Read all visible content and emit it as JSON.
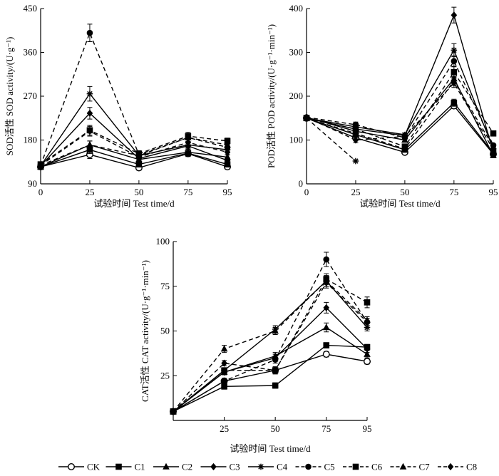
{
  "chart_data": [
    {
      "id": "sod",
      "type": "line",
      "ylabel": "SOD活性 SOD activity/(U·g⁻¹)",
      "xlabel": "试验时间 Test time/d",
      "xlim": [
        0,
        95
      ],
      "ylim": [
        90,
        450
      ],
      "xticks": [
        0,
        25,
        50,
        75,
        95
      ],
      "yticks": [
        90,
        180,
        270,
        360,
        450
      ],
      "x": [
        0,
        25,
        50,
        75,
        95
      ],
      "series": [
        {
          "name": "CK",
          "values": [
            125,
            150,
            123,
            152,
            125
          ],
          "err": [
            0,
            8,
            5,
            6,
            5
          ]
        },
        {
          "name": "C1",
          "values": [
            125,
            160,
            130,
            153,
            130
          ],
          "err": [
            0,
            8,
            5,
            6,
            5
          ]
        },
        {
          "name": "C2",
          "values": [
            125,
            170,
            140,
            155,
            145
          ],
          "err": [
            0,
            8,
            5,
            6,
            5
          ]
        },
        {
          "name": "C3",
          "values": [
            127,
            235,
            142,
            168,
            138
          ],
          "err": [
            0,
            12,
            6,
            6,
            6
          ]
        },
        {
          "name": "C4",
          "values": [
            127,
            275,
            148,
            170,
            160
          ],
          "err": [
            0,
            15,
            6,
            6,
            6
          ]
        },
        {
          "name": "C5",
          "values": [
            128,
            400,
            150,
            185,
            165
          ],
          "err": [
            0,
            18,
            6,
            8,
            6
          ]
        },
        {
          "name": "C6",
          "values": [
            130,
            200,
            152,
            188,
            178
          ],
          "err": [
            0,
            10,
            6,
            8,
            6
          ]
        },
        {
          "name": "C7",
          "values": [
            128,
            170,
            148,
            185,
            170
          ],
          "err": [
            0,
            8,
            6,
            8,
            6
          ]
        },
        {
          "name": "C8",
          "values": [
            128,
            198,
            145,
            175,
            155
          ],
          "err": [
            0,
            10,
            6,
            6,
            6
          ]
        }
      ]
    },
    {
      "id": "pod",
      "type": "line",
      "ylabel": "POD活性 POD activity/(U·g⁻¹·min⁻¹)",
      "xlabel": "试验时间 Test time/d",
      "xlim": [
        0,
        95
      ],
      "ylim": [
        0,
        400
      ],
      "xticks": [
        0,
        25,
        50,
        75,
        95
      ],
      "yticks": [
        0,
        100,
        200,
        300,
        400
      ],
      "x": [
        0,
        25,
        50,
        75,
        95
      ],
      "series": [
        {
          "name": "CK",
          "values": [
            150,
            105,
            72,
            178,
            68
          ],
          "err": [
            5,
            6,
            4,
            6,
            4
          ]
        },
        {
          "name": "C1",
          "values": [
            150,
            112,
            78,
            185,
            70
          ],
          "err": [
            5,
            6,
            4,
            8,
            4
          ]
        },
        {
          "name": "C2",
          "values": [
            152,
            120,
            100,
            240,
            65
          ],
          "err": [
            5,
            6,
            4,
            10,
            4
          ]
        },
        {
          "name": "C3",
          "values": [
            150,
            125,
            110,
            385,
            72
          ],
          "err": [
            5,
            6,
            4,
            18,
            4
          ]
        },
        {
          "name": "C4",
          "values": [
            150,
            130,
            112,
            305,
            80
          ],
          "err": [
            5,
            6,
            4,
            15,
            4
          ]
        },
        {
          "name": "C5",
          "values": [
            152,
            135,
            105,
            280,
            88
          ],
          "err": [
            5,
            6,
            4,
            12,
            4
          ]
        },
        {
          "name": "C6",
          "values": [
            150,
            125,
            85,
            255,
            115
          ],
          "err": [
            5,
            6,
            4,
            12,
            4
          ]
        },
        {
          "name": "C7",
          "values": [
            150,
            115,
            80,
            235,
            85
          ],
          "err": [
            5,
            6,
            4,
            10,
            4
          ]
        },
        {
          "name": "C8",
          "values": [
            152,
            100,
            108,
            230,
            78
          ],
          "err": [
            5,
            6,
            4,
            10,
            4
          ]
        }
      ],
      "extra_points": [
        {
          "series": "C4",
          "from": [
            0,
            150
          ],
          "to": [
            25,
            52
          ],
          "style": "dashed"
        }
      ]
    },
    {
      "id": "cat",
      "type": "line",
      "ylabel": "CAT活性 CAT activity/(U·g⁻¹·min⁻¹)",
      "xlabel": "试验时间 Test time/d",
      "xlim": [
        0,
        95
      ],
      "ylim": [
        0,
        100
      ],
      "xticks": [
        25,
        50,
        75,
        95
      ],
      "yticks": [
        25,
        50,
        75,
        100
      ],
      "x": [
        0,
        25,
        50,
        75,
        95
      ],
      "series": [
        {
          "name": "CK",
          "values": [
            5,
            22,
            28,
            37,
            33
          ],
          "err": [
            0,
            1.5,
            1.5,
            1.5,
            1.5
          ]
        },
        {
          "name": "C1",
          "values": [
            5,
            19,
            19.5,
            42,
            41
          ],
          "err": [
            0,
            1.5,
            1.5,
            1.5,
            1.5
          ]
        },
        {
          "name": "C2",
          "values": [
            5,
            27,
            36,
            52,
            37
          ],
          "err": [
            0,
            1.5,
            2,
            2.5,
            2
          ]
        },
        {
          "name": "C3",
          "values": [
            5,
            27,
            35,
            63,
            40
          ],
          "err": [
            0,
            1.5,
            2,
            3,
            2
          ]
        },
        {
          "name": "C4",
          "values": [
            5,
            28,
            51,
            78,
            52
          ],
          "err": [
            0,
            1.5,
            2,
            3,
            2
          ]
        },
        {
          "name": "C5",
          "values": [
            5,
            22,
            34,
            90,
            55
          ],
          "err": [
            0,
            1.5,
            2,
            4,
            2
          ]
        },
        {
          "name": "C6",
          "values": [
            5,
            28,
            28,
            79,
            66
          ],
          "err": [
            0,
            1.5,
            2,
            3,
            3
          ]
        },
        {
          "name": "C7",
          "values": [
            5,
            40,
            50,
            78,
            56
          ],
          "err": [
            0,
            2,
            2,
            3,
            2
          ]
        },
        {
          "name": "C8",
          "values": [
            5,
            32,
            28,
            77,
            55
          ],
          "err": [
            0,
            1.5,
            2,
            3,
            2
          ]
        }
      ]
    }
  ],
  "legend": [
    {
      "name": "CK",
      "marker": "open-circle",
      "dash": "solid"
    },
    {
      "name": "C1",
      "marker": "square",
      "dash": "solid"
    },
    {
      "name": "C2",
      "marker": "triangle",
      "dash": "solid"
    },
    {
      "name": "C3",
      "marker": "diamond",
      "dash": "solid"
    },
    {
      "name": "C4",
      "marker": "star",
      "dash": "solid"
    },
    {
      "name": "C5",
      "marker": "circle",
      "dash": "dashed"
    },
    {
      "name": "C6",
      "marker": "square",
      "dash": "dashed"
    },
    {
      "name": "C7",
      "marker": "triangle",
      "dash": "dashed"
    },
    {
      "name": "C8",
      "marker": "diamond",
      "dash": "dashed"
    }
  ]
}
